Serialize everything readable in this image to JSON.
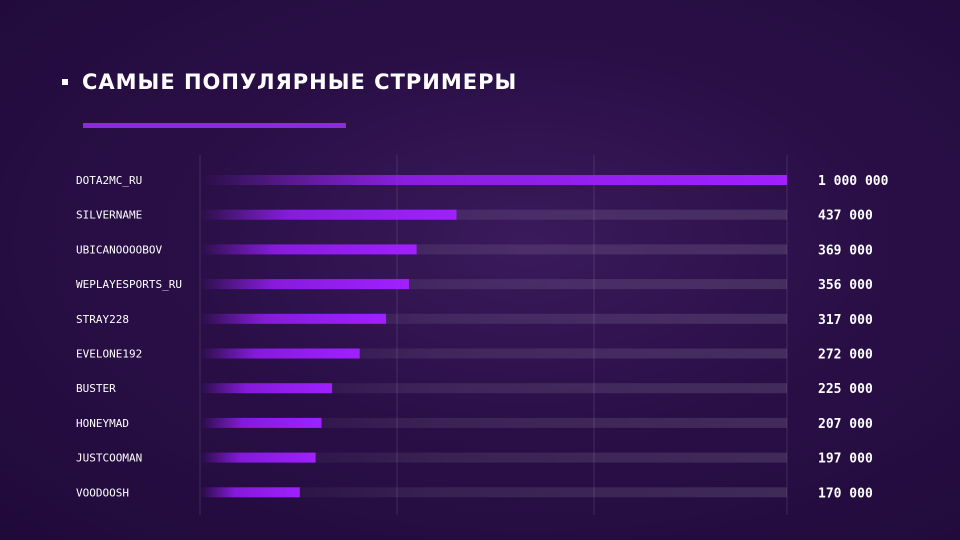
{
  "title": "САМЫЕ ПОПУЛЯРНЫЕ СТРИМЕРЫ",
  "colors": {
    "accent": "#8a2be2",
    "bar": "#9b1cff",
    "background": "#2a0f47"
  },
  "chart_data": {
    "type": "bar",
    "orientation": "horizontal",
    "title": "САМЫЕ ПОПУЛЯРНЫЕ СТРИМЕРЫ",
    "categories": [
      "DOTA2MC_RU",
      "SILVERNAME",
      "UBICANOOOOBOV",
      "WEPLAYESPORTS_RU",
      "STRAY228",
      "EVELONE192",
      "BUSTER",
      "HONEYMAD",
      "JUSTCOOMAN",
      "VOODOOSH"
    ],
    "values": [
      1000000,
      437000,
      369000,
      356000,
      317000,
      272000,
      225000,
      207000,
      197000,
      170000
    ],
    "value_labels": [
      "1 000 000",
      "437 000",
      "369 000",
      "356 000",
      "317 000",
      "272 000",
      "225 000",
      "207 000",
      "197 000",
      "170 000"
    ],
    "xlim": [
      0,
      1000000
    ],
    "grid": true
  }
}
